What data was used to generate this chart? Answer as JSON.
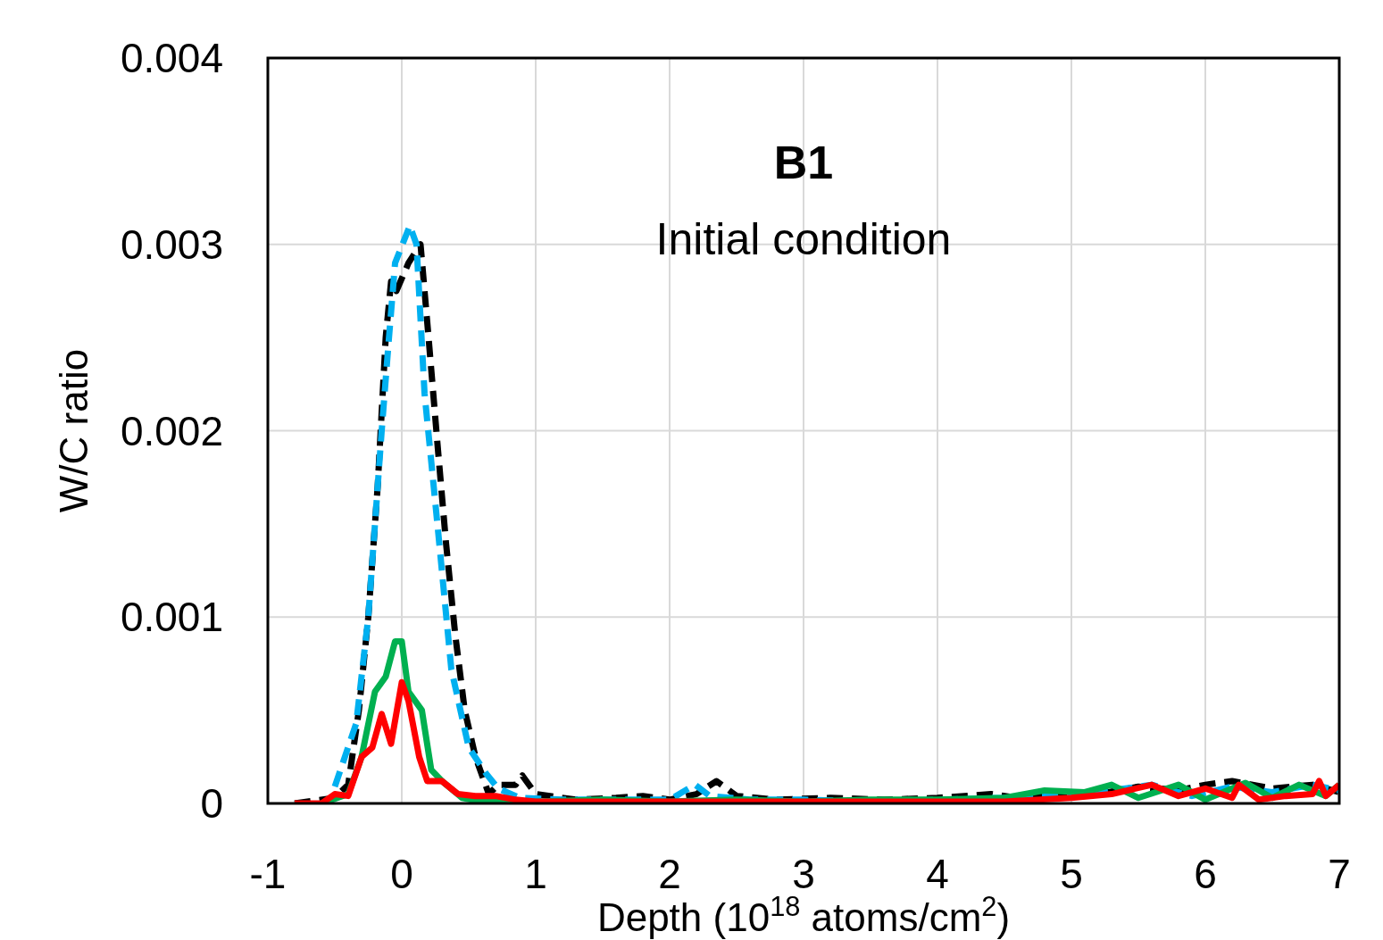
{
  "chart_data": {
    "type": "line",
    "xlabel": "Depth (10$^{18}$ atoms/cm$^{2}$)",
    "ylabel": "W/C ratio",
    "annotations": [
      "B1",
      "Initial condition"
    ],
    "xlim": [
      -1,
      7
    ],
    "xticks": [
      -1,
      0,
      1,
      2,
      3,
      4,
      5,
      6,
      7
    ],
    "ylim": [
      0,
      0.004
    ],
    "yticks": [
      0,
      0.001,
      0.002,
      0.003,
      0.004
    ],
    "grid": true,
    "marker": "none",
    "series": [
      {
        "color": "#000000",
        "line_style": "dashed",
        "x": [
          -0.8,
          -0.5,
          -0.4,
          -0.32,
          -0.25,
          -0.18,
          -0.12,
          -0.08,
          -0.04,
          0.05,
          0.14,
          0.2,
          0.27,
          0.33,
          0.4,
          0.47,
          0.55,
          0.65,
          0.72,
          0.85,
          0.9,
          1.0,
          1.3,
          1.6,
          1.8,
          2.0,
          2.2,
          2.35,
          2.5,
          2.8,
          3.2,
          3.6,
          4.0,
          4.4,
          4.6,
          4.9,
          5.2,
          5.5,
          5.8,
          6.0,
          6.2,
          6.5,
          6.8,
          7.0
        ],
        "values": [
          0,
          3e-05,
          0.0001,
          0.0005,
          0.001,
          0.0017,
          0.0025,
          0.0028,
          0.00275,
          0.0029,
          0.003,
          0.0025,
          0.0019,
          0.0014,
          0.0009,
          0.0005,
          0.00025,
          5e-05,
          0.0001,
          0.0001,
          0.00015,
          5e-05,
          2e-05,
          3e-05,
          4e-05,
          2e-05,
          5e-05,
          0.00012,
          4e-05,
          2e-05,
          3e-05,
          2e-05,
          3e-05,
          5e-05,
          3e-05,
          6e-05,
          5e-05,
          9e-05,
          7e-05,
          0.0001,
          0.00012,
          8e-05,
          0.0001,
          6e-05
        ]
      },
      {
        "color": "#00b0f0",
        "line_style": "dashed",
        "x": [
          -0.5,
          -0.34,
          -0.25,
          -0.15,
          -0.1,
          -0.05,
          0.06,
          0.11,
          0.17,
          0.27,
          0.37,
          0.5,
          0.63,
          0.72,
          0.88,
          1.2,
          1.6,
          2.0,
          2.19,
          2.3,
          2.6,
          3.0,
          3.5,
          4.0,
          4.5,
          5.0,
          5.3,
          5.6,
          5.9,
          6.2,
          6.5,
          6.8,
          7.0
        ],
        "values": [
          9e-05,
          0.00043,
          0.001,
          0.002,
          0.00246,
          0.0029,
          0.0031,
          0.003,
          0.0022,
          0.00147,
          0.00072,
          0.0003,
          0.00016,
          8e-05,
          3e-05,
          2e-05,
          2e-05,
          2e-05,
          0.0001,
          4e-05,
          2e-05,
          2e-05,
          1e-05,
          2e-05,
          3e-05,
          5e-05,
          7e-05,
          0.0001,
          4e-05,
          9e-05,
          6e-05,
          0.0001,
          7e-05
        ]
      },
      {
        "color": "#00b050",
        "line_style": "solid",
        "x": [
          -0.6,
          -0.4,
          -0.3,
          -0.2,
          -0.12,
          -0.05,
          0.0,
          0.05,
          0.15,
          0.22,
          0.3,
          0.45,
          0.6,
          1.0,
          1.5,
          2.0,
          2.5,
          3.0,
          3.5,
          4.0,
          4.5,
          4.8,
          5.1,
          5.3,
          5.5,
          5.8,
          6.0,
          6.3,
          6.5,
          6.7,
          6.9,
          7.0
        ],
        "values": [
          0,
          5e-05,
          0.00025,
          0.0006,
          0.00068,
          0.00087,
          0.00087,
          0.0006,
          0.0005,
          0.00018,
          0.00012,
          3e-05,
          1e-05,
          1e-05,
          2e-05,
          1e-05,
          2e-05,
          1e-05,
          2e-05,
          2e-05,
          3e-05,
          7e-05,
          6e-05,
          0.0001,
          3e-05,
          0.0001,
          2e-05,
          0.00011,
          3e-05,
          0.0001,
          4e-05,
          0.0001
        ]
      },
      {
        "color": "#ff0000",
        "line_style": "solid",
        "x": [
          -0.8,
          -0.6,
          -0.5,
          -0.4,
          -0.3,
          -0.22,
          -0.15,
          -0.08,
          0.0,
          0.05,
          0.13,
          0.19,
          0.3,
          0.42,
          0.55,
          0.7,
          0.85,
          1.0,
          1.5,
          2.0,
          2.5,
          3.0,
          3.5,
          4.0,
          4.5,
          5.0,
          5.3,
          5.6,
          5.8,
          6.0,
          6.2,
          6.25,
          6.4,
          6.6,
          6.8,
          6.85,
          6.9,
          7.0
        ],
        "values": [
          0,
          0,
          5e-05,
          4e-05,
          0.00025,
          0.0003,
          0.00048,
          0.00032,
          0.00065,
          0.00055,
          0.00025,
          0.00012,
          0.00012,
          5e-05,
          4e-05,
          4e-05,
          2e-05,
          1e-05,
          1e-05,
          1e-05,
          1e-05,
          1e-05,
          1e-05,
          1e-05,
          1e-05,
          3e-05,
          5e-05,
          0.0001,
          4e-05,
          8e-05,
          3e-05,
          0.0001,
          2e-05,
          4e-05,
          5e-05,
          0.00012,
          4e-05,
          0.0001
        ]
      }
    ]
  }
}
